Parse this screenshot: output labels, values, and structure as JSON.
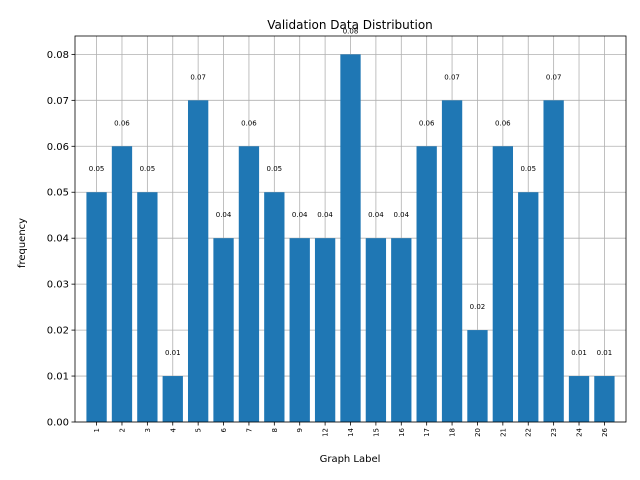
{
  "chart_data": {
    "type": "bar",
    "title": "Validation Data Distribution",
    "xlabel": "Graph Label",
    "ylabel": "frequency",
    "categories": [
      "1",
      "2",
      "3",
      "4",
      "5",
      "6",
      "7",
      "8",
      "9",
      "12",
      "14",
      "15",
      "16",
      "17",
      "18",
      "20",
      "21",
      "22",
      "23",
      "24",
      "26"
    ],
    "values": [
      0.05,
      0.06,
      0.05,
      0.01,
      0.07,
      0.04,
      0.06,
      0.05,
      0.04,
      0.04,
      0.08,
      0.04,
      0.04,
      0.06,
      0.07,
      0.02,
      0.06,
      0.05,
      0.07,
      0.01,
      0.01
    ],
    "data_labels": [
      "0.05",
      "0.06",
      "0.05",
      "0.01",
      "0.07",
      "0.04",
      "0.06",
      "0.05",
      "0.04",
      "0.04",
      "0.08",
      "0.04",
      "0.04",
      "0.06",
      "0.07",
      "0.02",
      "0.06",
      "0.05",
      "0.07",
      "0.01",
      "0.01"
    ],
    "ylim": [
      0,
      0.084
    ],
    "yticks": [
      0.0,
      0.01,
      0.02,
      0.03,
      0.04,
      0.05,
      0.06,
      0.07,
      0.08
    ],
    "ytick_labels": [
      "0.00",
      "0.01",
      "0.02",
      "0.03",
      "0.04",
      "0.05",
      "0.06",
      "0.07",
      "0.08"
    ],
    "grid": true,
    "bar_color": "#1f77b4",
    "xtick_rotation": "vertical"
  }
}
